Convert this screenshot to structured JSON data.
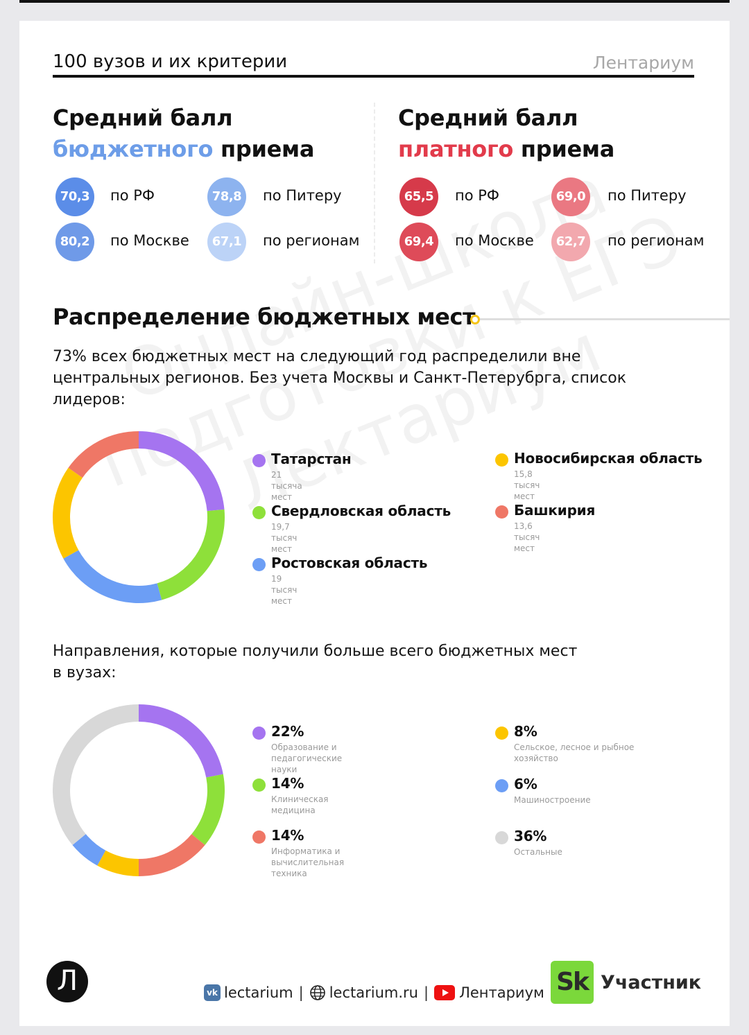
{
  "header": {
    "title": "100 вузов и их критерии",
    "brand": "Лентариум"
  },
  "budget": {
    "title_line1": "Средний балл",
    "title_accent": "бюджетного",
    "title_rest": " приема",
    "scores": [
      {
        "value": "70,3",
        "label": "по РФ",
        "color": "#5b8de8"
      },
      {
        "value": "78,8",
        "label": "по Питеру",
        "color": "#8db3ef"
      },
      {
        "value": "80,2",
        "label": "по Москве",
        "color": "#6f9ae8"
      },
      {
        "value": "67,1",
        "label": "по регионам",
        "color": "#bcd3f7"
      }
    ]
  },
  "paid": {
    "title_line1": "Средний балл",
    "title_accent": "платного",
    "title_rest": " приема",
    "scores": [
      {
        "value": "65,5",
        "label": "по РФ",
        "color": "#d63a4a"
      },
      {
        "value": "69,0",
        "label": "по Питеру",
        "color": "#ea7882"
      },
      {
        "value": "69,4",
        "label": "по Москве",
        "color": "#de4b59"
      },
      {
        "value": "62,7",
        "label": "по регионам",
        "color": "#f2a8ae"
      }
    ]
  },
  "distribution": {
    "title": "Распределение бюджетных мест",
    "text": "73% всех бюджетных мест на следующий год распределили вне центральных регионов. Без учета Москвы и Санкт-Петерубрга, список лидеров:"
  },
  "directions": {
    "text": "Направления, которые получили больше всего бюджетных мест в вузах:"
  },
  "watermark": "Онлайн-школа подготовки к ЕГЭ Лектариум",
  "footer": {
    "logo_letter": "Л",
    "vk": "lectarium",
    "site": "lectarium.ru",
    "youtube": "Лентариум",
    "sk_label": "Участник",
    "sk_logo": "Sk",
    "separator": "|"
  },
  "chart_data": [
    {
      "type": "pie",
      "categories": [
        "Татарстан",
        "Свердловская область",
        "Ростовская область",
        "Новосибирская область",
        "Башкирия"
      ],
      "values": [
        21,
        19.7,
        19,
        15.8,
        13.6
      ],
      "sublabels": [
        "21 тысяча мест",
        "19,7 тысяч мест",
        "19 тысяч мест",
        "15,8 тысяч мест",
        "13,6 тысяч мест"
      ],
      "colors": [
        "#a574f0",
        "#8ee03a",
        "#6c9ef5",
        "#fcc500",
        "#ef7766"
      ],
      "donut": true
    },
    {
      "type": "pie",
      "categories": [
        "22%",
        "14%",
        "14%",
        "8%",
        "6%",
        "36%"
      ],
      "values": [
        22,
        14,
        14,
        8,
        6,
        36
      ],
      "sublabels": [
        "Образование и педагогические науки",
        "Клиническая медицина",
        "Информатика и вычислительная техника",
        "Сельское, лесное и рыбное хозяйство",
        "Машиностроение",
        "Остальные"
      ],
      "colors": [
        "#a574f0",
        "#8ee03a",
        "#ef7766",
        "#fcc500",
        "#6c9ef5",
        "#d8d8d8"
      ],
      "donut": true
    }
  ]
}
